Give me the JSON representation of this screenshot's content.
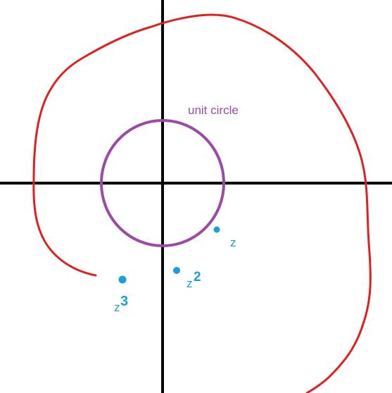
{
  "diagram": {
    "unit_circle_label": "unit circle",
    "points": [
      {
        "id": "z",
        "label": "z",
        "exponent": ""
      },
      {
        "id": "z2",
        "label": "z",
        "exponent": "2"
      },
      {
        "id": "z3",
        "label": "z",
        "exponent": "3"
      }
    ]
  },
  "colors": {
    "background": "#ffffff",
    "axes": "#000000",
    "unit_circle": "#9b4aa6",
    "spiral": "#e02020",
    "points": "#1a9fd8"
  }
}
